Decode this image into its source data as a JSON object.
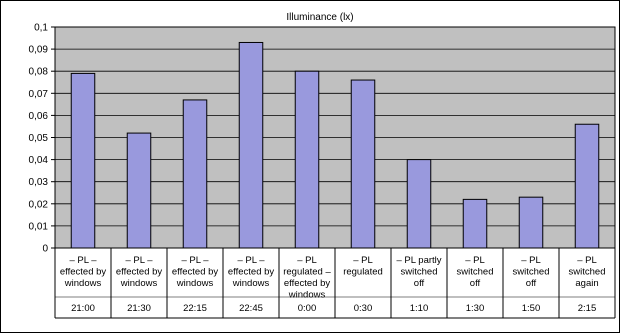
{
  "chart_data": {
    "type": "bar",
    "title": "Illuminance (lx)",
    "xlabel": "",
    "ylabel": "",
    "ylim": [
      0,
      0.1
    ],
    "yticks": [
      "0",
      "0,01",
      "0,02",
      "0,03",
      "0,04",
      "0,05",
      "0,06",
      "0,07",
      "0,08",
      "0,09",
      "0,1"
    ],
    "grid": true,
    "categories": [
      {
        "lines": [
          "– PL –",
          "effected by",
          "windows"
        ],
        "time": "21:00"
      },
      {
        "lines": [
          "– PL –",
          "effected by",
          "windows"
        ],
        "time": "21:30"
      },
      {
        "lines": [
          "– PL –",
          "effected by",
          "windows"
        ],
        "time": "22:15"
      },
      {
        "lines": [
          "– PL –",
          "effected by",
          "windows"
        ],
        "time": "22:45"
      },
      {
        "lines": [
          "– PL",
          "regulated –",
          "effected by",
          "windows"
        ],
        "time": "0:00"
      },
      {
        "lines": [
          "– PL",
          "regulated"
        ],
        "time": "0:30"
      },
      {
        "lines": [
          "– PL partly",
          "switched",
          "off"
        ],
        "time": "1:10"
      },
      {
        "lines": [
          "– PL",
          "switched",
          "off"
        ],
        "time": "1:30"
      },
      {
        "lines": [
          "– PL",
          "switched",
          "off"
        ],
        "time": "1:50"
      },
      {
        "lines": [
          "– PL",
          "switched",
          "again"
        ],
        "time": "2:15"
      }
    ],
    "values": [
      0.079,
      0.052,
      0.067,
      0.093,
      0.08,
      0.076,
      0.04,
      0.022,
      0.023,
      0.056
    ],
    "colors": {
      "bar_fill": "#9999dd",
      "bar_stroke": "#000000",
      "plot_bg": "#c0c0c0",
      "gridline": "#000000",
      "table_border": "#000000"
    }
  }
}
